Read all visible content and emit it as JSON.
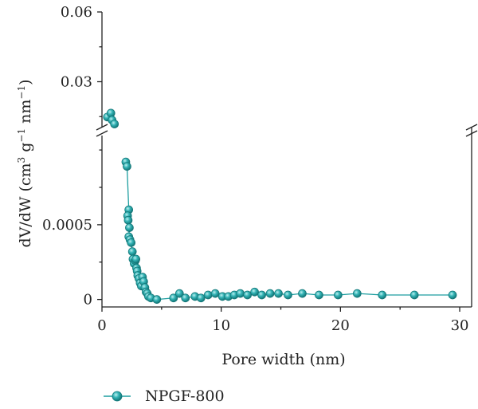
{
  "chart_data": {
    "type": "scatter",
    "xlabel": "Pore width (nm)",
    "ylabel": {
      "text": "dV/dW (cm",
      "sup1": "3",
      "mid1": " g",
      "sup2": "−1",
      "mid2": " nm",
      "sup3": "−1",
      "end": ")"
    },
    "xlim": [
      0,
      31
    ],
    "xticks": [
      "0",
      "10",
      "20",
      "30"
    ],
    "y_upper": {
      "ylim": [
        0.012,
        0.06
      ],
      "ticks": [
        "0.06",
        "0.03"
      ]
    },
    "y_lower": {
      "ylim": [
        -5e-05,
        0.00107
      ],
      "ticks": [
        "0.0005",
        "0"
      ]
    },
    "axis_break": true,
    "series": [
      {
        "name": "NPGF-800",
        "color": "#1e9ea0",
        "upper_points": [
          [
            0.45,
            0.0148
          ],
          [
            0.75,
            0.0165
          ],
          [
            0.85,
            0.0135
          ],
          [
            1.05,
            0.0118
          ]
        ],
        "lower_points": [
          [
            2.0,
            0.00092
          ],
          [
            2.1,
            0.00089
          ],
          [
            2.25,
            0.0006
          ],
          [
            2.15,
            0.00056
          ],
          [
            2.2,
            0.00053
          ],
          [
            2.3,
            0.00048
          ],
          [
            2.25,
            0.00042
          ],
          [
            2.35,
            0.0004
          ],
          [
            2.45,
            0.00038
          ],
          [
            2.55,
            0.00032
          ],
          [
            2.6,
            0.00027
          ],
          [
            2.7,
            0.00024
          ],
          [
            2.8,
            0.00026
          ],
          [
            2.85,
            0.00027
          ],
          [
            2.9,
            0.00021
          ],
          [
            2.95,
            0.00019
          ],
          [
            3.0,
            0.00016
          ],
          [
            3.1,
            0.00014
          ],
          [
            3.2,
            0.00011
          ],
          [
            3.3,
            9e-05
          ],
          [
            3.4,
            0.00015
          ],
          [
            3.5,
            0.00012
          ],
          [
            3.6,
            8e-05
          ],
          [
            3.7,
            5e-05
          ],
          [
            3.8,
            4e-05
          ],
          [
            3.9,
            2e-05
          ],
          [
            4.1,
            1e-05
          ],
          [
            4.6,
            0.0
          ],
          [
            6.0,
            1e-05
          ],
          [
            6.5,
            4e-05
          ],
          [
            7.0,
            1e-05
          ],
          [
            7.8,
            2e-05
          ],
          [
            8.3,
            1e-05
          ],
          [
            8.9,
            3e-05
          ],
          [
            9.5,
            4e-05
          ],
          [
            10.1,
            2e-05
          ],
          [
            10.6,
            2e-05
          ],
          [
            11.1,
            3e-05
          ],
          [
            11.6,
            4e-05
          ],
          [
            12.2,
            3e-05
          ],
          [
            12.8,
            5e-05
          ],
          [
            13.4,
            3e-05
          ],
          [
            14.1,
            4e-05
          ],
          [
            14.8,
            4e-05
          ],
          [
            15.6,
            3e-05
          ],
          [
            16.8,
            4e-05
          ],
          [
            18.2,
            3e-05
          ],
          [
            19.8,
            3e-05
          ],
          [
            21.4,
            4e-05
          ],
          [
            23.5,
            3e-05
          ],
          [
            26.2,
            3e-05
          ],
          [
            29.4,
            3e-05
          ]
        ]
      }
    ],
    "legend": {
      "entries": [
        "NPGF-800"
      ],
      "position": "bottom-left"
    }
  }
}
